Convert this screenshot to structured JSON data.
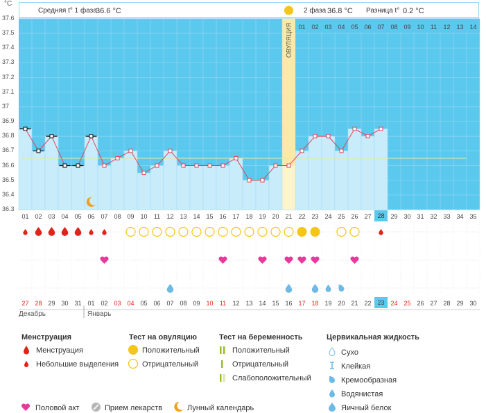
{
  "header": {
    "phase1_label": "Средняя t° 1 фаза",
    "phase1_value": "36.6 °C",
    "phase2_label": "2 фаза",
    "phase2_value": "36.8 °C",
    "diff_label": "Разница t°",
    "diff_value": "0.2 °C",
    "ovulation_label": "ОВУЛЯЦИЯ"
  },
  "unit": "°C",
  "colors": {
    "accent": "#5bc8ee",
    "bar": "#c9ecfb",
    "line": "#e0435a",
    "ovulation": "#fde9a6",
    "menstruation": "#e0231b",
    "heart": "#e8389a",
    "drop": "#6fb9e6",
    "test": "#f5c518"
  },
  "y_ticks": [
    "37.6",
    "37.5",
    "37.4",
    "37.3",
    "37.2",
    "37.1",
    "37",
    "36.9",
    "36.8",
    "36.7",
    "36.6",
    "36.5",
    "36.4",
    "36.3"
  ],
  "top_days": [
    "01",
    "02",
    "03",
    "04",
    "05",
    "06",
    "07",
    "08",
    "09",
    "10",
    "11",
    "12",
    "13",
    "14"
  ],
  "cycle_days": [
    "01",
    "02",
    "03",
    "04",
    "05",
    "06",
    "07",
    "08",
    "09",
    "10",
    "11",
    "12",
    "13",
    "14",
    "15",
    "16",
    "17",
    "18",
    "19",
    "20",
    "21",
    "22",
    "23",
    "24",
    "25",
    "26",
    "27",
    "28",
    "29",
    "30",
    "31",
    "32",
    "33",
    "34",
    "35"
  ],
  "dates": [
    {
      "d": "27",
      "r": true
    },
    {
      "d": "28",
      "r": true
    },
    {
      "d": "29",
      "r": false
    },
    {
      "d": "30",
      "r": false
    },
    {
      "d": "31",
      "r": false
    },
    {
      "d": "01",
      "r": false
    },
    {
      "d": "02",
      "r": false
    },
    {
      "d": "03",
      "r": true
    },
    {
      "d": "04",
      "r": true
    },
    {
      "d": "05",
      "r": false
    },
    {
      "d": "06",
      "r": false
    },
    {
      "d": "07",
      "r": false
    },
    {
      "d": "08",
      "r": false
    },
    {
      "d": "09",
      "r": false
    },
    {
      "d": "10",
      "r": true
    },
    {
      "d": "11",
      "r": true
    },
    {
      "d": "12",
      "r": false
    },
    {
      "d": "13",
      "r": false
    },
    {
      "d": "14",
      "r": false
    },
    {
      "d": "15",
      "r": false
    },
    {
      "d": "16",
      "r": false
    },
    {
      "d": "17",
      "r": true
    },
    {
      "d": "18",
      "r": true
    },
    {
      "d": "19",
      "r": false
    },
    {
      "d": "20",
      "r": false
    },
    {
      "d": "21",
      "r": false
    },
    {
      "d": "22",
      "r": false
    },
    {
      "d": "23",
      "r": false
    },
    {
      "d": "24",
      "r": true
    },
    {
      "d": "25",
      "r": true
    },
    {
      "d": "26",
      "r": false
    },
    {
      "d": "27",
      "r": false
    },
    {
      "d": "28",
      "r": false
    },
    {
      "d": "29",
      "r": false
    },
    {
      "d": "30",
      "r": false
    }
  ],
  "months": {
    "dec": "Декабрь",
    "jan": "Январь"
  },
  "chart_data": {
    "type": "line",
    "x": [
      1,
      2,
      3,
      4,
      5,
      6,
      7,
      8,
      9,
      10,
      11,
      12,
      13,
      14,
      15,
      16,
      17,
      18,
      19,
      20,
      21,
      22,
      23,
      24,
      25,
      26,
      27,
      28
    ],
    "values": [
      36.85,
      36.7,
      36.8,
      36.6,
      36.6,
      36.8,
      36.6,
      36.65,
      36.7,
      36.55,
      36.6,
      36.7,
      36.6,
      36.6,
      36.6,
      36.6,
      36.65,
      36.5,
      36.5,
      36.6,
      36.6,
      36.7,
      36.8,
      36.8,
      36.7,
      36.85,
      36.8,
      36.85
    ],
    "ylim": [
      36.3,
      37.6
    ],
    "coverline": 36.65,
    "ovulation_day": 21,
    "current_day": 28
  },
  "markers": {
    "menstruation_big": [
      2,
      3,
      4,
      5
    ],
    "menstruation_small": [
      1,
      6,
      7,
      28
    ],
    "ovulation_negative": [
      9,
      10,
      11,
      12,
      13,
      14,
      15,
      16,
      17,
      18,
      19,
      20,
      21,
      25,
      26
    ],
    "ovulation_positive": [
      22,
      23
    ],
    "sex": [
      7,
      16,
      19,
      21,
      22,
      23,
      26
    ],
    "fluid_egg": [
      12,
      21,
      23
    ],
    "fluid_water": [
      24
    ],
    "fluid_creamy": [
      25
    ],
    "lunar": [
      6
    ]
  },
  "legend": {
    "menstruation_title": "Менструация",
    "menstruation_item": "Менструация",
    "spotting_item": "Небольшие выделения",
    "ovtest_title": "Тест на овуляцию",
    "ovtest_pos": "Положительный",
    "ovtest_neg": "Отрицательный",
    "preg_title": "Тест на беременность",
    "preg_pos": "Положительный",
    "preg_neg": "Отрицательный",
    "preg_weak": "Слабоположительный",
    "fluid_title": "Цервикальная жидкость",
    "fluid_dry": "Сухо",
    "fluid_sticky": "Клейкая",
    "fluid_creamy": "Кремообразная",
    "fluid_water": "Водянистая",
    "fluid_egg": "Яичный белок",
    "sex": "Половой акт",
    "meds": "Прием лекарств",
    "lunar": "Лунный календарь"
  }
}
